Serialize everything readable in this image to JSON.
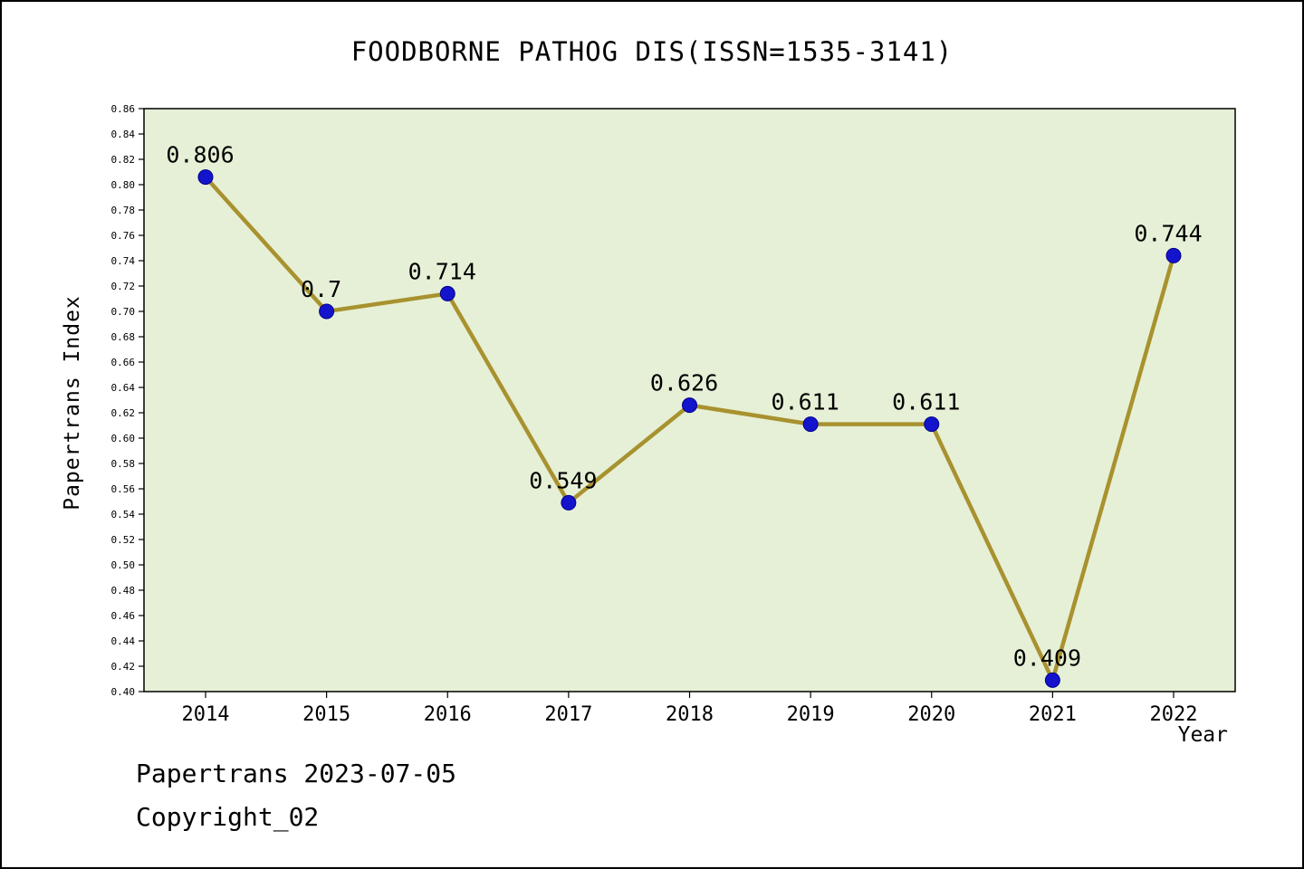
{
  "chart_data": {
    "type": "line",
    "title": "FOODBORNE PATHOG DIS(ISSN=1535-3141)",
    "xlabel": "Year",
    "ylabel": "Papertrans Index",
    "categories": [
      "2014",
      "2015",
      "2016",
      "2017",
      "2018",
      "2019",
      "2020",
      "2021",
      "2022"
    ],
    "values": [
      0.806,
      0.7,
      0.714,
      0.549,
      0.626,
      0.611,
      0.611,
      0.409,
      0.744
    ],
    "point_labels": [
      "0.806",
      "0.7",
      "0.714",
      "0.549",
      "0.626",
      "0.611",
      "0.611",
      "0.409",
      "0.744"
    ],
    "ylim": [
      0.4,
      0.86
    ],
    "ytick_step": 0.02,
    "grid": false,
    "legend": "none",
    "line_color": "#a8922f",
    "marker_color": "#1414cc",
    "marker_edge_color": "#00008b",
    "plot_bg": "#e6f0d6",
    "axis_color": "#000000"
  },
  "footer": {
    "line1": "Papertrans 2023-07-05",
    "line2": "Copyright_02"
  }
}
